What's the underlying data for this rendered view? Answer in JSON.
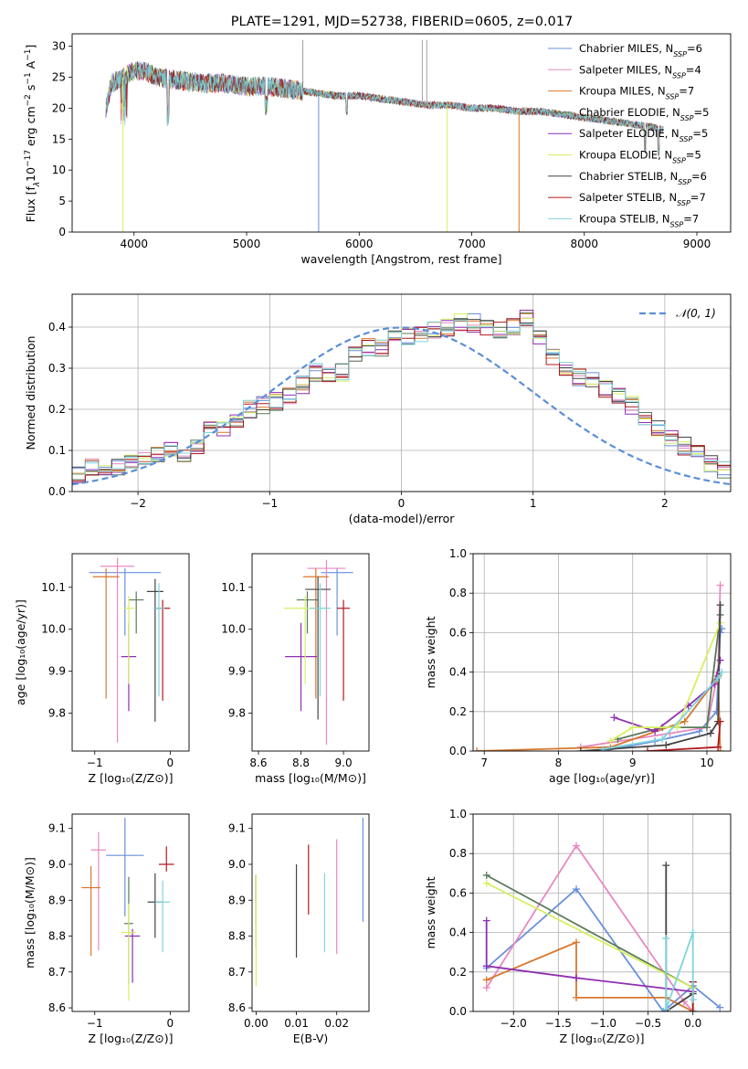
{
  "chart_data": [
    {
      "id": "spectrum",
      "type": "line",
      "title": "PLATE=1291, MJD=52738, FIBERID=0605, z=0.017",
      "xlabel": "wavelength [Angstrom, rest frame]",
      "ylabel_parts": {
        "a": "Flux [f",
        "b": "λ",
        "c": "10",
        "d": "−17",
        "e": " erg cm",
        "f": "−2",
        "g": " s",
        "h": "−1",
        "i": " A",
        "j": "−1",
        "k": "]"
      },
      "xlim": [
        3450,
        9300
      ],
      "ylim": [
        0,
        32
      ],
      "xticks": [
        "4000",
        "5000",
        "6000",
        "7000",
        "8000",
        "9000"
      ],
      "yticks": [
        "0",
        "5",
        "10",
        "15",
        "20",
        "25",
        "30"
      ],
      "legend_position": "upper right",
      "continuum": {
        "x": [
          3750,
          3800,
          3900,
          4000,
          4100,
          4200,
          4400,
          4600,
          4800,
          5000,
          5200,
          5400,
          5600,
          5800,
          6000,
          6200,
          6400,
          6600,
          6800,
          7000,
          7200,
          7400,
          7600,
          7800,
          8000,
          8200,
          8400,
          8600,
          8700
        ],
        "y": [
          20,
          24,
          25,
          26,
          26,
          25,
          24.5,
          24,
          24,
          23.5,
          23.5,
          23,
          22.5,
          22,
          22,
          21.5,
          21,
          20.5,
          20.5,
          20,
          20,
          19.5,
          19.5,
          19,
          18.5,
          18,
          17.5,
          17,
          16.5
        ]
      },
      "series": [
        {
          "name": "Chabrier MILES",
          "nssp": "6",
          "color": "#6a8fdc"
        },
        {
          "name": "Salpeter MILES",
          "nssp": "4",
          "color": "#e889c0"
        },
        {
          "name": "Kroupa MILES",
          "nssp": "7",
          "color": "#d8772d"
        },
        {
          "name": "Chabrier ELODIE",
          "nssp": "5",
          "color": "#5a7a5a"
        },
        {
          "name": "Salpeter ELODIE",
          "nssp": "5",
          "color": "#8e2fb0"
        },
        {
          "name": "Kroupa ELODIE",
          "nssp": "5",
          "color": "#d6ef64"
        },
        {
          "name": "Chabrier STELIB",
          "nssp": "6",
          "color": "#444444"
        },
        {
          "name": "Salpeter STELIB",
          "nssp": "7",
          "color": "#b0191d"
        },
        {
          "name": "Kroupa STELIB",
          "nssp": "7",
          "color": "#7fd4dc"
        }
      ]
    },
    {
      "id": "residuals",
      "type": "bar",
      "xlabel": "(data-model)/error",
      "ylabel": "Normed distribution",
      "xlim": [
        -2.5,
        2.5
      ],
      "ylim": [
        0,
        0.48
      ],
      "xticks": [
        "−2",
        "−1",
        "0",
        "1",
        "2"
      ],
      "yticks": [
        "0.0",
        "0.1",
        "0.2",
        "0.3",
        "0.4"
      ],
      "grid": true,
      "legend": "𝒩(0, 1)",
      "legend_position": "upper right",
      "bin_width": 0.1,
      "gaussian": {
        "mean": 0,
        "sigma": 1
      },
      "histogram_values": [
        0.04,
        0.06,
        0.055,
        0.06,
        0.075,
        0.08,
        0.09,
        0.1,
        0.08,
        0.11,
        0.15,
        0.15,
        0.17,
        0.2,
        0.21,
        0.22,
        0.23,
        0.26,
        0.29,
        0.28,
        0.29,
        0.33,
        0.35,
        0.35,
        0.37,
        0.38,
        0.38,
        0.39,
        0.4,
        0.41,
        0.41,
        0.4,
        0.39,
        0.4,
        0.42,
        0.38,
        0.33,
        0.3,
        0.28,
        0.27,
        0.25,
        0.23,
        0.21,
        0.18,
        0.15,
        0.13,
        0.11,
        0.09,
        0.07,
        0.05
      ]
    },
    {
      "id": "age_vs_Z",
      "type": "scatter",
      "xlabel": "Z [log₁₀(Z/Z⊙)]",
      "ylabel": "age  [log₁₀(age/yr)]",
      "xlim": [
        -1.3,
        0.25
      ],
      "ylim": [
        9.71,
        10.18
      ],
      "xticks": [
        "−1",
        "0"
      ],
      "yticks": [
        "9.8",
        "9.9",
        "10.0",
        "10.1"
      ],
      "points": [
        {
          "x": -0.6,
          "y": 10.135,
          "xerr": 0.95,
          "yerr": [
            0.15,
            0.01
          ],
          "color": "#6a8fdc"
        },
        {
          "x": -0.7,
          "y": 10.15,
          "xerr": 0.45,
          "yerr": [
            0.42,
            0.02
          ],
          "color": "#e889c0"
        },
        {
          "x": -0.85,
          "y": 10.125,
          "xerr": 0.35,
          "yerr": [
            0.29,
            0.02
          ],
          "color": "#d8772d"
        },
        {
          "x": -0.45,
          "y": 10.07,
          "xerr": 0.2,
          "yerr": [
            0.08,
            0.02
          ],
          "color": "#5a7a5a"
        },
        {
          "x": -0.55,
          "y": 9.935,
          "xerr": 0.2,
          "yerr": [
            0.13,
            0.08
          ],
          "color": "#8e2fb0"
        },
        {
          "x": -0.55,
          "y": 10.05,
          "xerr": 0.15,
          "yerr": [
            0.18,
            0.03
          ],
          "color": "#d6ef64"
        },
        {
          "x": -0.2,
          "y": 10.09,
          "xerr": 0.22,
          "yerr": [
            0.31,
            0.03
          ],
          "color": "#444444"
        },
        {
          "x": -0.1,
          "y": 10.05,
          "xerr": 0.2,
          "yerr": [
            0.22,
            0.02
          ],
          "color": "#b0191d"
        },
        {
          "x": -0.15,
          "y": 10.05,
          "xerr": 0.15,
          "yerr": [
            0.21,
            0.06
          ],
          "color": "#7fd4dc"
        }
      ]
    },
    {
      "id": "age_vs_mass",
      "type": "scatter",
      "xlabel": "mass [log₁₀(M/M⊙)]",
      "ylabel": "",
      "xlim": [
        8.57,
        9.12
      ],
      "ylim": [
        9.71,
        10.18
      ],
      "xticks": [
        "8.6",
        "8.8",
        "9.0"
      ],
      "yticks": [
        "9.8",
        "9.9",
        "10.0",
        "10.1"
      ],
      "points": [
        {
          "x": 8.97,
          "y": 10.135,
          "xerr": 0.15,
          "yerr": [
            0.15,
            0.01
          ],
          "color": "#6a8fdc"
        },
        {
          "x": 8.92,
          "y": 10.145,
          "xerr": 0.18,
          "yerr": [
            0.42,
            0.02
          ],
          "color": "#e889c0"
        },
        {
          "x": 8.87,
          "y": 10.125,
          "xerr": 0.12,
          "yerr": [
            0.29,
            0.02
          ],
          "color": "#d8772d"
        },
        {
          "x": 8.83,
          "y": 10.07,
          "xerr": 0.1,
          "yerr": [
            0.08,
            0.02
          ],
          "color": "#5a7a5a"
        },
        {
          "x": 8.8,
          "y": 9.935,
          "xerr": 0.15,
          "yerr": [
            0.13,
            0.08
          ],
          "color": "#8e2fb0"
        },
        {
          "x": 8.82,
          "y": 10.05,
          "xerr": 0.2,
          "yerr": [
            0.18,
            0.03
          ],
          "color": "#d6ef64"
        },
        {
          "x": 8.88,
          "y": 10.095,
          "xerr": 0.12,
          "yerr": [
            0.31,
            0.03
          ],
          "color": "#444444"
        },
        {
          "x": 9.0,
          "y": 10.05,
          "xerr": 0.06,
          "yerr": [
            0.22,
            0.02
          ],
          "color": "#b0191d"
        },
        {
          "x": 8.89,
          "y": 10.05,
          "xerr": 0.1,
          "yerr": [
            0.21,
            0.06
          ],
          "color": "#7fd4dc"
        }
      ]
    },
    {
      "id": "weight_vs_age",
      "type": "line",
      "xlabel": "age  [log₁₀(age/yr)]",
      "ylabel": "mass weight",
      "xlim": [
        6.85,
        10.32
      ],
      "ylim": [
        0,
        1.0
      ],
      "xticks": [
        "7",
        "8",
        "9",
        "10"
      ],
      "yticks": [
        "0.0",
        "0.2",
        "0.4",
        "0.6",
        "0.8",
        "1.0"
      ],
      "grid": true,
      "series": [
        {
          "color": "#6a8fdc",
          "x": [
            8.6,
            9.3,
            9.9,
            10.13,
            10.18,
            10.2
          ],
          "y": [
            0.0,
            0.05,
            0.1,
            0.2,
            0.6,
            0.62
          ]
        },
        {
          "color": "#e889c0",
          "x": [
            8.3,
            9.5,
            10.0,
            10.15,
            10.18
          ],
          "y": [
            0.02,
            0.09,
            0.12,
            0.4,
            0.84
          ]
        },
        {
          "color": "#d8772d",
          "x": [
            6.9,
            8.7,
            9.7,
            10.1,
            10.15,
            10.18
          ],
          "y": [
            0.0,
            0.02,
            0.15,
            0.35,
            0.38,
            0.0
          ]
        },
        {
          "color": "#5a7a5a",
          "x": [
            8.8,
            9.4,
            10.0,
            10.18
          ],
          "y": [
            0.06,
            0.12,
            0.12,
            0.69
          ]
        },
        {
          "color": "#8e2fb0",
          "x": [
            8.75,
            9.3,
            9.75,
            10.1,
            10.18
          ],
          "y": [
            0.17,
            0.1,
            0.23,
            0.34,
            0.46
          ]
        },
        {
          "color": "#d6ef64",
          "x": [
            8.7,
            9.0,
            9.6,
            10.18
          ],
          "y": [
            0.05,
            0.12,
            0.12,
            0.65
          ]
        },
        {
          "color": "#444444",
          "x": [
            8.3,
            9.45,
            10.05,
            10.15,
            10.18
          ],
          "y": [
            0.0,
            0.03,
            0.09,
            0.15,
            0.74
          ]
        },
        {
          "color": "#b0191d",
          "x": [
            9.2,
            10.15,
            10.18
          ],
          "y": [
            0.0,
            0.02,
            0.15
          ]
        },
        {
          "color": "#7fd4dc",
          "x": [
            8.6,
            9.4,
            10.15,
            10.2
          ],
          "y": [
            0.01,
            0.06,
            0.37,
            0.4
          ]
        }
      ]
    },
    {
      "id": "mass_vs_Z",
      "type": "scatter",
      "xlabel": "Z [log₁₀(Z/Z⊙)]",
      "ylabel": "mass [log₁₀(M/M⊙)]",
      "xlim": [
        -1.3,
        0.25
      ],
      "ylim": [
        8.59,
        9.14
      ],
      "xticks": [
        "−1",
        "0"
      ],
      "yticks": [
        "8.6",
        "8.7",
        "8.8",
        "8.9",
        "9.0",
        "9.1"
      ],
      "points": [
        {
          "x": -0.6,
          "y": 9.025,
          "xerr": 0.5,
          "yerr": [
            0.17,
            0.105
          ],
          "color": "#6a8fdc"
        },
        {
          "x": -0.95,
          "y": 9.04,
          "xerr": 0.2,
          "yerr": [
            0.28,
            0.05
          ],
          "color": "#e889c0"
        },
        {
          "x": -1.05,
          "y": 8.935,
          "xerr": 0.25,
          "yerr": [
            0.19,
            0.06
          ],
          "color": "#d8772d"
        },
        {
          "x": -0.55,
          "y": 8.835,
          "xerr": 0.12,
          "yerr": [
            0.17,
            0.13
          ],
          "color": "#5a7a5a"
        },
        {
          "x": -0.5,
          "y": 8.8,
          "xerr": 0.2,
          "yerr": [
            0.13,
            0.02
          ],
          "color": "#8e2fb0"
        },
        {
          "x": -0.55,
          "y": 8.81,
          "xerr": 0.2,
          "yerr": [
            0.19,
            0.08
          ],
          "color": "#d6ef64"
        },
        {
          "x": -0.2,
          "y": 8.895,
          "xerr": 0.2,
          "yerr": [
            0.1,
            0.08
          ],
          "color": "#444444"
        },
        {
          "x": -0.05,
          "y": 9.0,
          "xerr": 0.2,
          "yerr": [
            0.02,
            0.05
          ],
          "color": "#b0191d"
        },
        {
          "x": -0.1,
          "y": 8.895,
          "xerr": 0.2,
          "yerr": [
            0.14,
            0.06
          ],
          "color": "#7fd4dc"
        }
      ]
    },
    {
      "id": "mass_vs_ebv",
      "type": "scatter",
      "xlabel": "E(B-V)",
      "ylabel": "",
      "xlim": [
        -0.001,
        0.028
      ],
      "ylim": [
        8.59,
        9.14
      ],
      "xticks": [
        "0.00",
        "0.01",
        "0.02"
      ],
      "yticks": [
        "8.6",
        "8.7",
        "8.8",
        "8.9",
        "9.0",
        "9.1"
      ],
      "points": [
        {
          "x": 0.0265,
          "y": 8.99,
          "xerr": 0,
          "yerr": [
            0.15,
            0.14
          ],
          "color": "#6a8fdc"
        },
        {
          "x": 0.02,
          "y": 8.92,
          "xerr": 0,
          "yerr": [
            0.17,
            0.15
          ],
          "color": "#e889c0"
        },
        {
          "x": 0.0,
          "y": 8.93,
          "xerr": 0,
          "yerr": [
            0.1,
            0.04
          ],
          "color": "#d8772d"
        },
        {
          "x": 0.0,
          "y": 8.87,
          "xerr": 0,
          "yerr": [
            0.1,
            0.1
          ],
          "color": "#5a7a5a"
        },
        {
          "x": 0.0,
          "y": 8.93,
          "xerr": 0,
          "yerr": [
            0.03,
            0.04
          ],
          "color": "#8e2fb0"
        },
        {
          "x": 0.0,
          "y": 8.8,
          "xerr": 0,
          "yerr": [
            0.14,
            0.17
          ],
          "color": "#d6ef64"
        },
        {
          "x": 0.01,
          "y": 8.87,
          "xerr": 0,
          "yerr": [
            0.13,
            0.13
          ],
          "color": "#444444"
        },
        {
          "x": 0.013,
          "y": 8.96,
          "xerr": 0,
          "yerr": [
            0.1,
            0.095
          ],
          "color": "#b0191d"
        },
        {
          "x": 0.017,
          "y": 8.865,
          "xerr": 0,
          "yerr": [
            0.11,
            0.11
          ],
          "color": "#7fd4dc"
        }
      ]
    },
    {
      "id": "weight_vs_Z",
      "type": "line",
      "xlabel": "Z [log₁₀(Z/Z⊙)]",
      "ylabel": "mass weight",
      "xlim": [
        -2.45,
        0.42
      ],
      "ylim": [
        0,
        1.0
      ],
      "xticks": [
        "−2.0",
        "−1.5",
        "−1.0",
        "−0.5",
        "0.0"
      ],
      "yticks": [
        "0.0",
        "0.2",
        "0.4",
        "0.6",
        "0.8",
        "1.0"
      ],
      "grid": true,
      "series": [
        {
          "color": "#6a8fdc",
          "x": [
            -2.3,
            -1.3,
            -0.33,
            0.0,
            0.3
          ],
          "y": [
            0.22,
            0.62,
            0.0,
            0.13,
            0.02
          ]
        },
        {
          "color": "#e889c0",
          "x": [
            -2.3,
            -1.3,
            -0.1,
            0.0
          ],
          "y": [
            0.12,
            0.84,
            0.05,
            0.0
          ]
        },
        {
          "color": "#d8772d",
          "x": [
            -2.3,
            -1.3,
            -1.3,
            -0.3,
            0.0
          ],
          "y": [
            0.16,
            0.35,
            0.07,
            0.07,
            0.0
          ]
        },
        {
          "color": "#5a7a5a",
          "x": [
            -2.3,
            0.0,
            0.0
          ],
          "y": [
            0.69,
            0.12,
            0.0
          ]
        },
        {
          "color": "#8e2fb0",
          "x": [
            -2.3,
            -2.3,
            -1.3,
            0.0,
            0.0
          ],
          "y": [
            0.46,
            0.23,
            0.17,
            0.1,
            0.0
          ]
        },
        {
          "color": "#d6ef64",
          "x": [
            -2.3,
            0.0,
            0.0
          ],
          "y": [
            0.65,
            0.12,
            0.0
          ]
        },
        {
          "color": "#444444",
          "x": [
            -0.3,
            -0.3,
            0.0,
            0.0
          ],
          "y": [
            0.74,
            0.0,
            0.09,
            0.15
          ]
        },
        {
          "color": "#b0191d",
          "x": [
            0.0,
            0.0
          ],
          "y": [
            0.0,
            0.15
          ]
        },
        {
          "color": "#7fd4dc",
          "x": [
            -0.3,
            -0.3,
            0.0,
            0.0
          ],
          "y": [
            0.37,
            0.01,
            0.4,
            0.06
          ]
        }
      ]
    }
  ]
}
